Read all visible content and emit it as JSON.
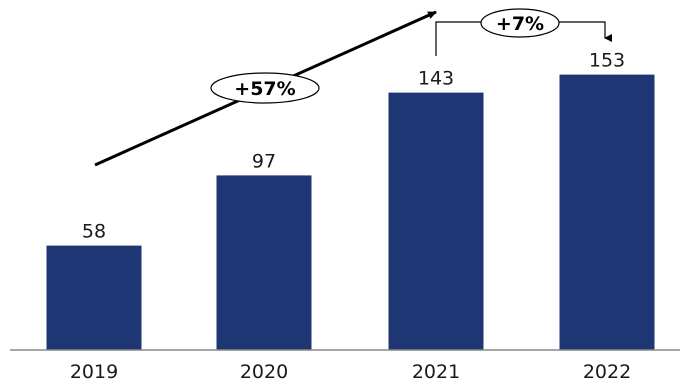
{
  "chart_data": {
    "type": "bar",
    "categories": [
      "2019",
      "2020",
      "2021",
      "2022"
    ],
    "values": [
      58,
      97,
      143,
      153
    ],
    "ylim": [
      0,
      180
    ],
    "grid": false,
    "legend": "none",
    "colors": {
      "bar": "#1f3675",
      "axis": "#888888",
      "arrow": "#000000"
    },
    "annotations": {
      "growth_2019_2021": "+57%",
      "growth_2021_2022": "+7%"
    }
  }
}
